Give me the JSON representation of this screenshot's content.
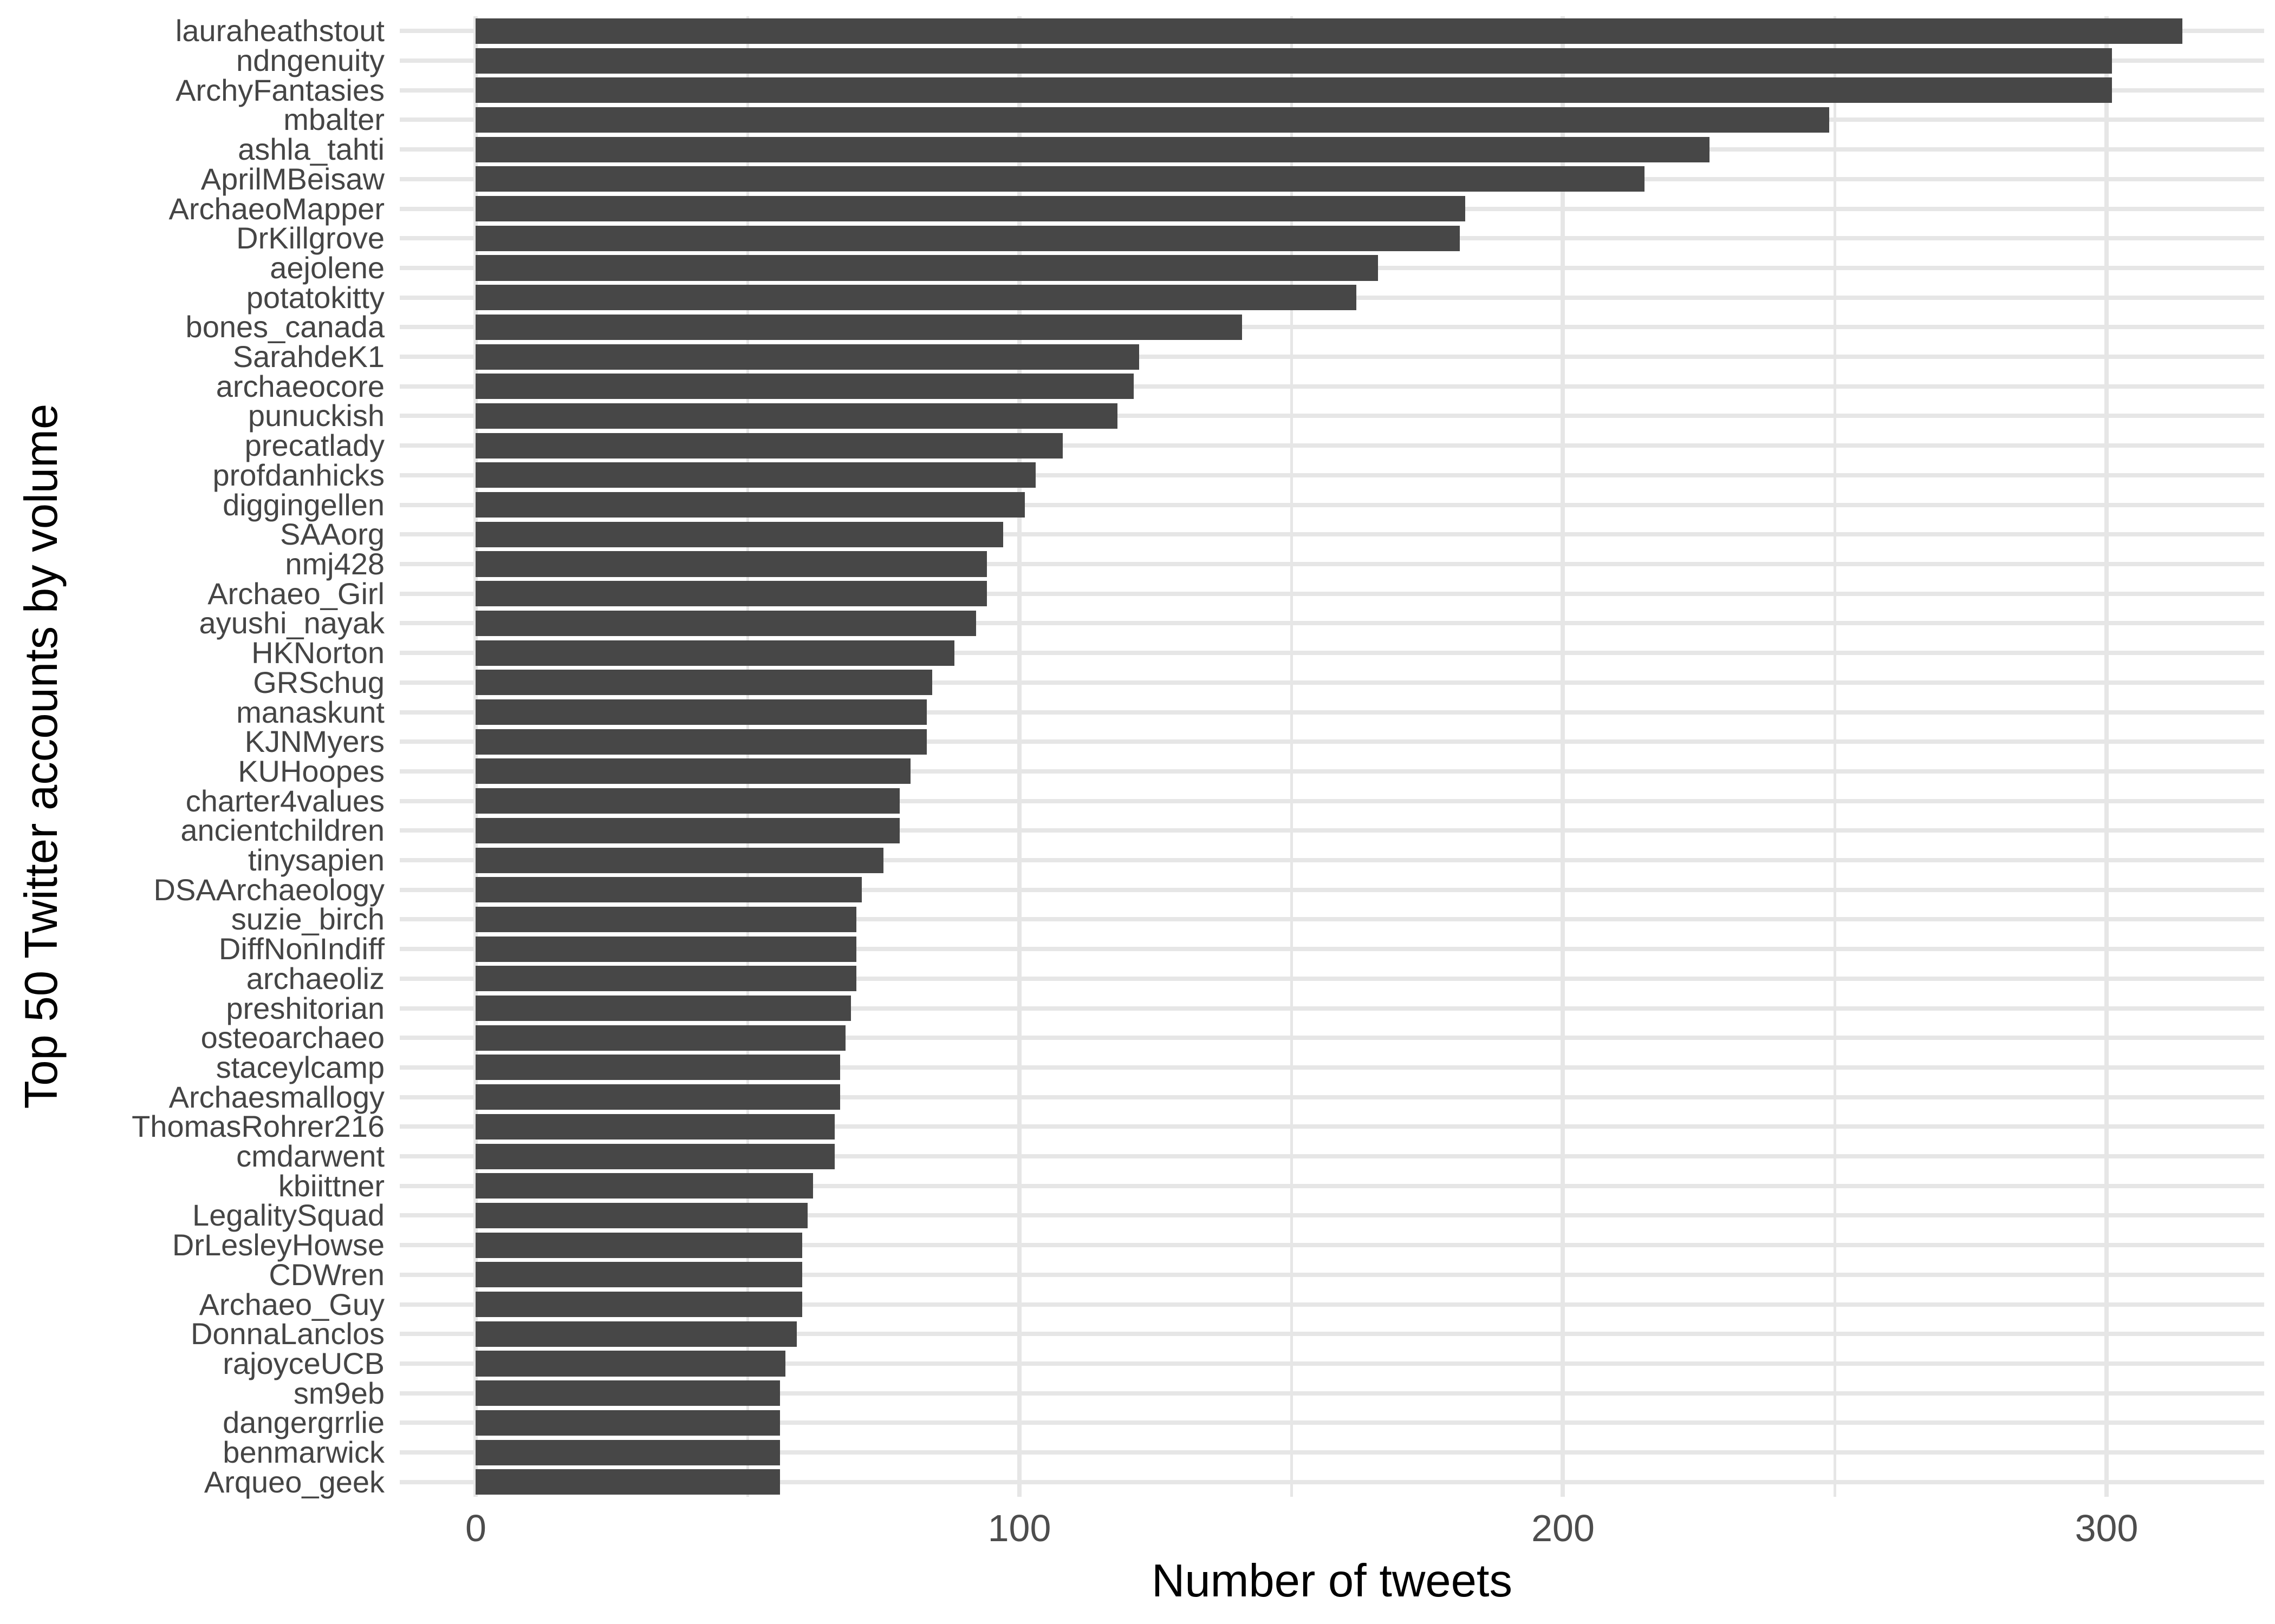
{
  "chart_data": {
    "type": "bar",
    "orientation": "horizontal",
    "xlabel": "Number of tweets",
    "ylabel": "Top 50 Twitter accounts by volume",
    "categories": [
      "lauraheathstout",
      "ndngenuity",
      "ArchyFantasies",
      "mbalter",
      "ashla_tahti",
      "AprilMBeisaw",
      "ArchaeoMapper",
      "DrKillgrove",
      "aejolene",
      "potatokitty",
      "bones_canada",
      "SarahdeK1",
      "archaeocore",
      "punuckish",
      "precatlady",
      "profdanhicks",
      "diggingellen",
      "SAAorg",
      "nmj428",
      "Archaeo_Girl",
      "ayushi_nayak",
      "HKNorton",
      "GRSchug",
      "manaskunt",
      "KJNMyers",
      "KUHoopes",
      "charter4values",
      "ancientchildren",
      "tinysapien",
      "DSAArchaeology",
      "suzie_birch",
      "DiffNonIndiff",
      "archaeoliz",
      "preshitorian",
      "osteoarchaeo",
      "staceylcamp",
      "Archaesmallogy",
      "ThomasRohrer216",
      "cmdarwent",
      "kbiittner",
      "LegalitySquad",
      "DrLesleyHowse",
      "CDWren",
      "Archaeo_Guy",
      "DonnaLanclos",
      "rajoyceUCB",
      "sm9eb",
      "dangergrrlie",
      "benmarwick",
      "Arqueo_geek"
    ],
    "values": [
      314,
      301,
      301,
      249,
      227,
      215,
      182,
      181,
      166,
      162,
      141,
      122,
      121,
      118,
      108,
      103,
      101,
      97,
      94,
      94,
      92,
      88,
      84,
      83,
      83,
      80,
      78,
      78,
      75,
      71,
      70,
      70,
      70,
      69,
      68,
      67,
      67,
      66,
      66,
      62,
      61,
      60,
      60,
      60,
      59,
      57,
      56,
      56,
      56,
      56
    ],
    "xlim": [
      -14,
      329
    ],
    "xticks": [
      0,
      100,
      200,
      300
    ],
    "minor_gridlines": [
      50,
      150,
      250
    ],
    "grid": "on",
    "legend": "none",
    "title": "",
    "bar_color": "#474747",
    "gridline_color": "#E6E6E6",
    "tick_label_color": "#4D4D4D",
    "category_label_color": "#454545",
    "axis_title_color": "#000000",
    "background_color": "#FFFFFF"
  }
}
